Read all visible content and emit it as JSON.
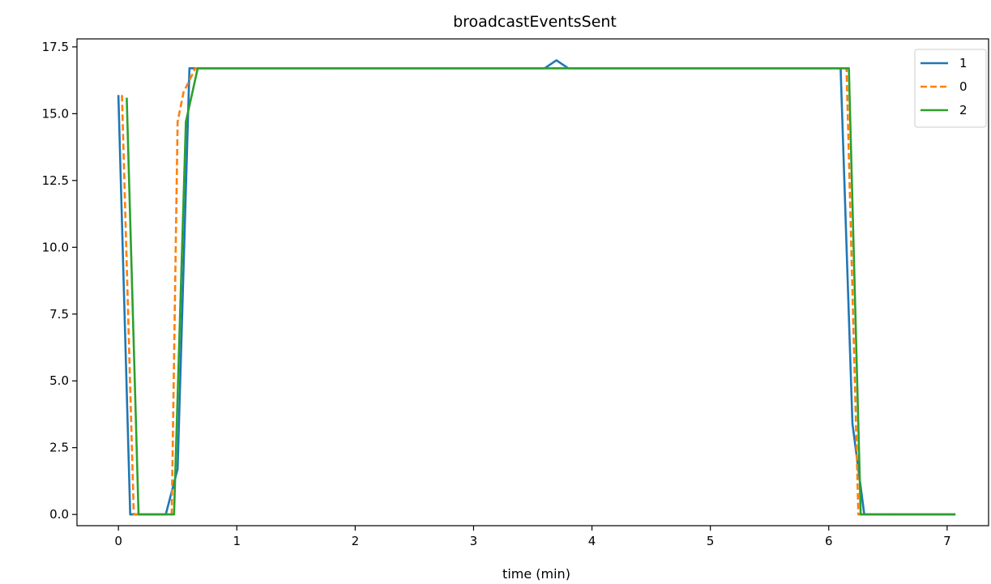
{
  "chart_data": {
    "type": "line",
    "title": "broadcastEventsSent",
    "xlabel": "time (min)",
    "ylabel": "",
    "xlim": [
      -0.35,
      7.35
    ],
    "ylim": [
      -0.42,
      17.8
    ],
    "xticks": [
      0,
      1,
      2,
      3,
      4,
      5,
      6,
      7
    ],
    "xtick_labels": [
      "0",
      "1",
      "2",
      "3",
      "4",
      "5",
      "6",
      "7"
    ],
    "yticks": [
      0,
      2.5,
      5,
      7.5,
      10,
      12.5,
      15,
      17.5
    ],
    "ytick_labels": [
      "0.0",
      "2.5",
      "5.0",
      "7.5",
      "10.0",
      "12.5",
      "15.0",
      "17.5"
    ],
    "grid": false,
    "legend_position": "top-right",
    "series": [
      {
        "name": "1",
        "color": "#1f77b4",
        "dash": "solid",
        "points": [
          [
            0.0,
            15.7
          ],
          [
            0.1,
            0.0
          ],
          [
            0.2,
            0.0
          ],
          [
            0.4,
            0.0
          ],
          [
            0.5,
            1.7
          ],
          [
            0.6,
            16.7
          ],
          [
            1.0,
            16.7
          ],
          [
            2.0,
            16.7
          ],
          [
            3.0,
            16.7
          ],
          [
            3.6,
            16.7
          ],
          [
            3.7,
            17.0
          ],
          [
            3.8,
            16.7
          ],
          [
            4.0,
            16.7
          ],
          [
            5.0,
            16.7
          ],
          [
            6.0,
            16.7
          ],
          [
            6.1,
            16.7
          ],
          [
            6.2,
            3.4
          ],
          [
            6.3,
            0.0
          ],
          [
            7.0,
            0.0
          ],
          [
            7.07,
            0.0
          ]
        ]
      },
      {
        "name": "0",
        "color": "#ff7f0e",
        "dash": "dashed",
        "points": [
          [
            0.03,
            15.7
          ],
          [
            0.13,
            0.0
          ],
          [
            0.2,
            0.0
          ],
          [
            0.4,
            0.0
          ],
          [
            0.45,
            0.0
          ],
          [
            0.5,
            14.7
          ],
          [
            0.55,
            15.8
          ],
          [
            0.65,
            16.7
          ],
          [
            1.0,
            16.7
          ],
          [
            2.0,
            16.7
          ],
          [
            3.0,
            16.7
          ],
          [
            4.0,
            16.7
          ],
          [
            5.0,
            16.7
          ],
          [
            6.0,
            16.7
          ],
          [
            6.15,
            16.7
          ],
          [
            6.25,
            0.0
          ],
          [
            7.0,
            0.0
          ],
          [
            7.07,
            0.0
          ]
        ]
      },
      {
        "name": "2",
        "color": "#2ca02c",
        "dash": "solid",
        "points": [
          [
            0.07,
            15.6
          ],
          [
            0.17,
            0.0
          ],
          [
            0.3,
            0.0
          ],
          [
            0.47,
            0.0
          ],
          [
            0.57,
            14.7
          ],
          [
            0.67,
            16.7
          ],
          [
            1.0,
            16.7
          ],
          [
            2.0,
            16.7
          ],
          [
            3.0,
            16.7
          ],
          [
            4.0,
            16.7
          ],
          [
            5.0,
            16.7
          ],
          [
            6.0,
            16.7
          ],
          [
            6.17,
            16.7
          ],
          [
            6.27,
            0.0
          ],
          [
            7.0,
            0.0
          ],
          [
            7.07,
            0.0
          ]
        ]
      }
    ]
  }
}
